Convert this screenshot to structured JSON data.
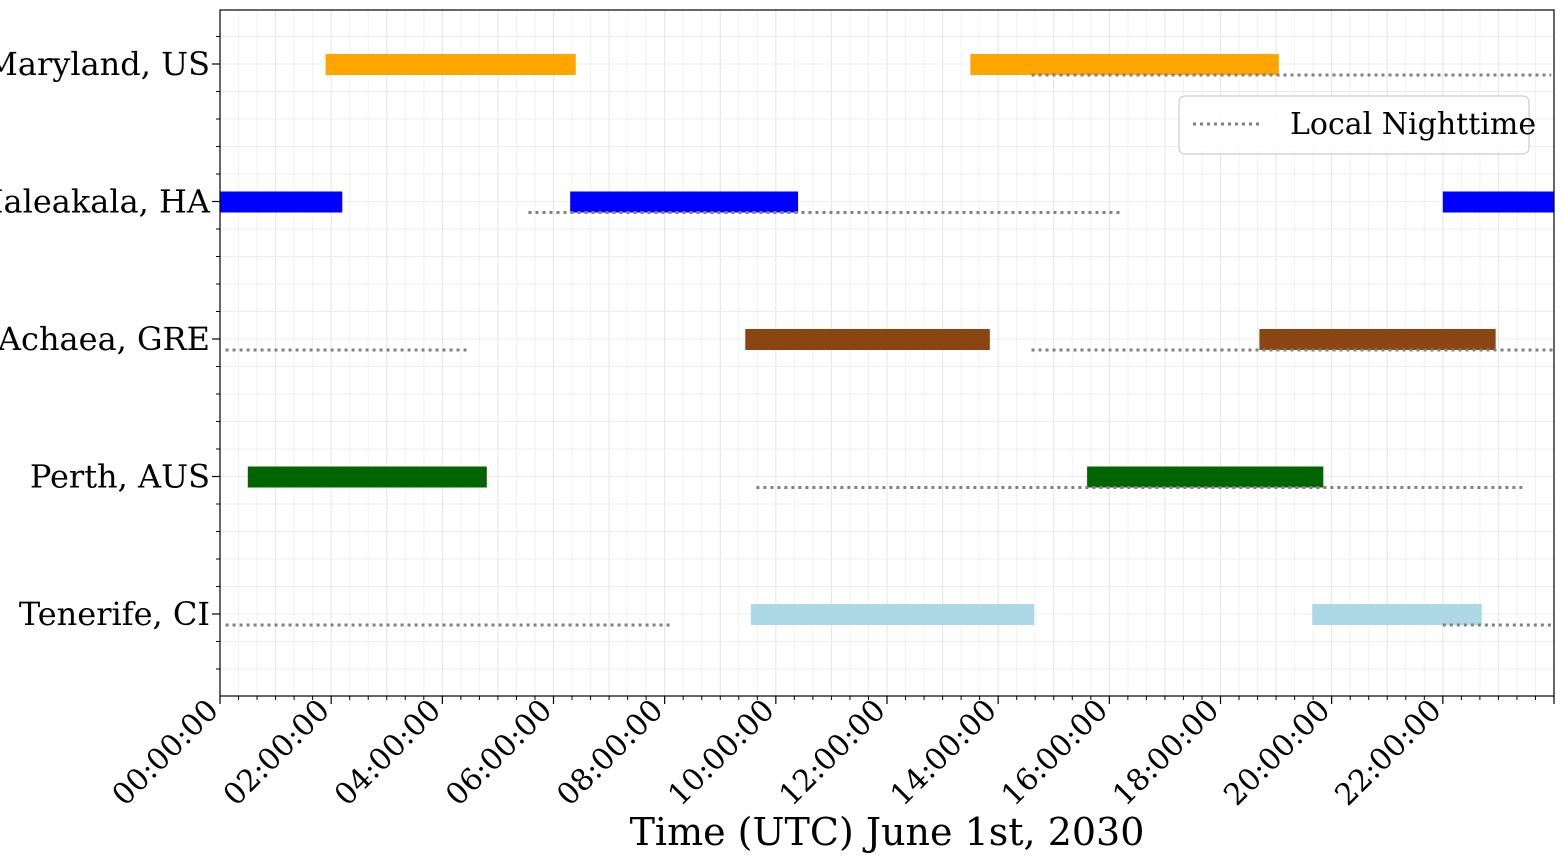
{
  "chart_data": {
    "type": "gantt",
    "xlabel": "Time (UTC) June 1st, 2030",
    "xlim_hours": [
      0,
      24
    ],
    "x_tick_labels": [
      "00:00:00",
      "02:00:00",
      "04:00:00",
      "06:00:00",
      "08:00:00",
      "10:00:00",
      "12:00:00",
      "14:00:00",
      "16:00:00",
      "18:00:00",
      "20:00:00",
      "22:00:00"
    ],
    "x_tick_hours": [
      0,
      2,
      4,
      6,
      8,
      10,
      12,
      14,
      16,
      18,
      20,
      22
    ],
    "grid": true,
    "legend": {
      "placement": "upper-right",
      "entries": [
        "Local Nighttime"
      ]
    },
    "sites": [
      {
        "name": "Maryland, US",
        "color": "#ffa500",
        "windows": [
          [
            1.9,
            6.4
          ],
          [
            13.5,
            19.05
          ]
        ],
        "night": [
          [
            14.6,
            23.95
          ]
        ]
      },
      {
        "name": "Haleakala, HA",
        "color": "#0000ff",
        "windows": [
          [
            0.0,
            2.2
          ],
          [
            6.3,
            10.4
          ],
          [
            22.0,
            24.0
          ]
        ],
        "night": [
          [
            5.55,
            16.2
          ]
        ]
      },
      {
        "name": "Achaea, GRE",
        "color": "#8b4513",
        "windows": [
          [
            9.45,
            13.85
          ],
          [
            18.7,
            22.95
          ]
        ],
        "night": [
          [
            0.1,
            4.45
          ],
          [
            14.6,
            24.0
          ]
        ]
      },
      {
        "name": "Perth, AUS",
        "color": "#006400",
        "windows": [
          [
            0.5,
            4.8
          ],
          [
            15.6,
            19.85
          ]
        ],
        "night": [
          [
            9.65,
            23.5
          ]
        ]
      },
      {
        "name": "Tenerife, CI",
        "color": "#add8e6",
        "windows": [
          [
            9.55,
            14.65
          ],
          [
            19.65,
            22.7
          ]
        ],
        "night": [
          [
            0.1,
            8.15
          ],
          [
            22.0,
            24.0
          ]
        ]
      }
    ]
  }
}
